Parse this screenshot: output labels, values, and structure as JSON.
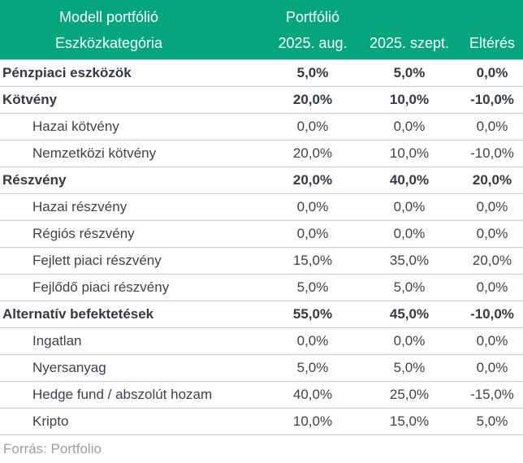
{
  "colors": {
    "header_bg": "#05a57e",
    "header_text": "#ffffff",
    "body_text": "#3d434c",
    "bold_text": "#343a44",
    "separator": "#cccccc",
    "source_text": "#9aa0a7"
  },
  "header": {
    "group_left": "Modell portfólió",
    "group_right": "Portfólió",
    "columns": [
      "Eszközkategória",
      "2025. aug.",
      "2025. szept.",
      "Eltérés"
    ]
  },
  "rows": [
    {
      "label": "Pénzpiaci eszközök",
      "bold": true,
      "indent": false,
      "values": [
        "5,0%",
        "5,0%",
        "0,0%"
      ]
    },
    {
      "label": "Kötvény",
      "bold": true,
      "indent": false,
      "values": [
        "20,0%",
        "10,0%",
        "-10,0%"
      ]
    },
    {
      "label": "Hazai kötvény",
      "bold": false,
      "indent": true,
      "values": [
        "0,0%",
        "0,0%",
        "0,0%"
      ]
    },
    {
      "label": "Nemzetközi kötvény",
      "bold": false,
      "indent": true,
      "values": [
        "20,0%",
        "10,0%",
        "-10,0%"
      ]
    },
    {
      "label": "Részvény",
      "bold": true,
      "indent": false,
      "values": [
        "20,0%",
        "40,0%",
        "20,0%"
      ]
    },
    {
      "label": "Hazai részvény",
      "bold": false,
      "indent": true,
      "values": [
        "0,0%",
        "0,0%",
        "0,0%"
      ]
    },
    {
      "label": "Régiós részvény",
      "bold": false,
      "indent": true,
      "values": [
        "0,0%",
        "0,0%",
        "0,0%"
      ]
    },
    {
      "label": "Fejlett piaci részvény",
      "bold": false,
      "indent": true,
      "values": [
        "15,0%",
        "35,0%",
        "20,0%"
      ]
    },
    {
      "label": "Fejlődő piaci részvény",
      "bold": false,
      "indent": true,
      "values": [
        "5,0%",
        "5,0%",
        "0,0%"
      ]
    },
    {
      "label": "Alternatív befektetések",
      "bold": true,
      "indent": false,
      "values": [
        "55,0%",
        "45,0%",
        "-10,0%"
      ]
    },
    {
      "label": "Ingatlan",
      "bold": false,
      "indent": true,
      "values": [
        "0,0%",
        "0,0%",
        "0,0%"
      ]
    },
    {
      "label": "Nyersanyag",
      "bold": false,
      "indent": true,
      "values": [
        "5,0%",
        "5,0%",
        "0,0%"
      ]
    },
    {
      "label": "Hedge fund / abszolút hozam",
      "bold": false,
      "indent": true,
      "values": [
        "40,0%",
        "25,0%",
        "-15,0%"
      ]
    },
    {
      "label": "Kripto",
      "bold": false,
      "indent": true,
      "values": [
        "10,0%",
        "15,0%",
        "5,0%"
      ]
    }
  ],
  "source": "Forrás: Portfolio",
  "chart_data": {
    "type": "table",
    "title": "Modell portfólió",
    "columns": [
      "Eszközkategória",
      "2025. aug. (%)",
      "2025. szept. (%)",
      "Eltérés (%)"
    ],
    "rows": [
      {
        "category": "Pénzpiaci eszközök",
        "group": true,
        "aug": 5.0,
        "szept": 5.0,
        "elteres": 0.0
      },
      {
        "category": "Kötvény",
        "group": true,
        "aug": 20.0,
        "szept": 10.0,
        "elteres": -10.0
      },
      {
        "category": "Hazai kötvény",
        "group": false,
        "aug": 0.0,
        "szept": 0.0,
        "elteres": 0.0
      },
      {
        "category": "Nemzetközi kötvény",
        "group": false,
        "aug": 20.0,
        "szept": 10.0,
        "elteres": -10.0
      },
      {
        "category": "Részvény",
        "group": true,
        "aug": 20.0,
        "szept": 40.0,
        "elteres": 20.0
      },
      {
        "category": "Hazai részvény",
        "group": false,
        "aug": 0.0,
        "szept": 0.0,
        "elteres": 0.0
      },
      {
        "category": "Régiós részvény",
        "group": false,
        "aug": 0.0,
        "szept": 0.0,
        "elteres": 0.0
      },
      {
        "category": "Fejlett piaci részvény",
        "group": false,
        "aug": 15.0,
        "szept": 35.0,
        "elteres": 20.0
      },
      {
        "category": "Fejlődő piaci részvény",
        "group": false,
        "aug": 5.0,
        "szept": 5.0,
        "elteres": 0.0
      },
      {
        "category": "Alternatív befektetések",
        "group": true,
        "aug": 55.0,
        "szept": 45.0,
        "elteres": -10.0
      },
      {
        "category": "Ingatlan",
        "group": false,
        "aug": 0.0,
        "szept": 0.0,
        "elteres": 0.0
      },
      {
        "category": "Nyersanyag",
        "group": false,
        "aug": 5.0,
        "szept": 5.0,
        "elteres": 0.0
      },
      {
        "category": "Hedge fund / abszolút hozam",
        "group": false,
        "aug": 40.0,
        "szept": 25.0,
        "elteres": -15.0
      },
      {
        "category": "Kripto",
        "group": false,
        "aug": 10.0,
        "szept": 15.0,
        "elteres": 5.0
      }
    ],
    "source": "Forrás: Portfolio"
  }
}
